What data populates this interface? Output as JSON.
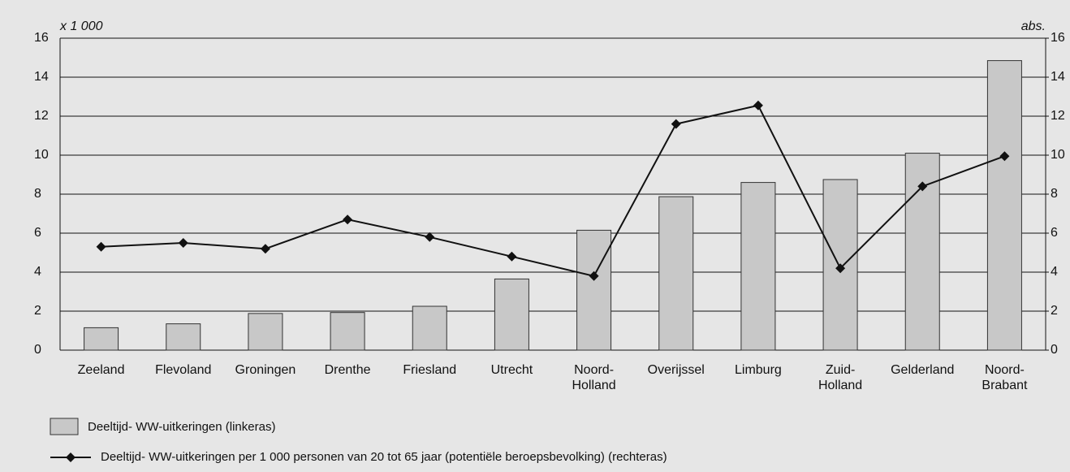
{
  "chart_data": {
    "type": "bar_line",
    "y_unit_label": "x 1 000",
    "y2_unit_label": "abs.",
    "categories": [
      "Zeeland",
      "Flevoland",
      "Groningen",
      "Drenthe",
      "Friesland",
      "Utrecht",
      "Noord-\nHolland",
      "Overijssel",
      "Limburg",
      "Zuid-\nHolland",
      "Gelderland",
      "Noord-\nBrabant"
    ],
    "series": [
      {
        "name": "Deeltijd- WW-uitkeringen (linkeras)",
        "type": "bar",
        "color": "#c8c8c8",
        "values": [
          1.15,
          1.35,
          1.88,
          1.93,
          2.25,
          3.65,
          6.15,
          7.87,
          8.6,
          8.75,
          10.1,
          14.85
        ]
      },
      {
        "name": "Deeltijd- WW-uitkeringen per 1 000 personen van 20 tot 65 jaar (potentiële beroepsbevolking) (rechteras)",
        "type": "line",
        "axis": "y2",
        "color": "#111111",
        "values": [
          5.3,
          5.5,
          5.2,
          6.7,
          5.8,
          4.8,
          3.8,
          11.6,
          12.55,
          4.2,
          8.4,
          9.95
        ]
      }
    ],
    "ylim": [
      0,
      16
    ],
    "yticks": [
      0,
      2,
      4,
      6,
      8,
      10,
      12,
      14,
      16
    ],
    "y2lim": [
      0,
      16
    ],
    "y2ticks": [
      0,
      2,
      4,
      6,
      8,
      10,
      12,
      14,
      16
    ],
    "grid": true
  }
}
